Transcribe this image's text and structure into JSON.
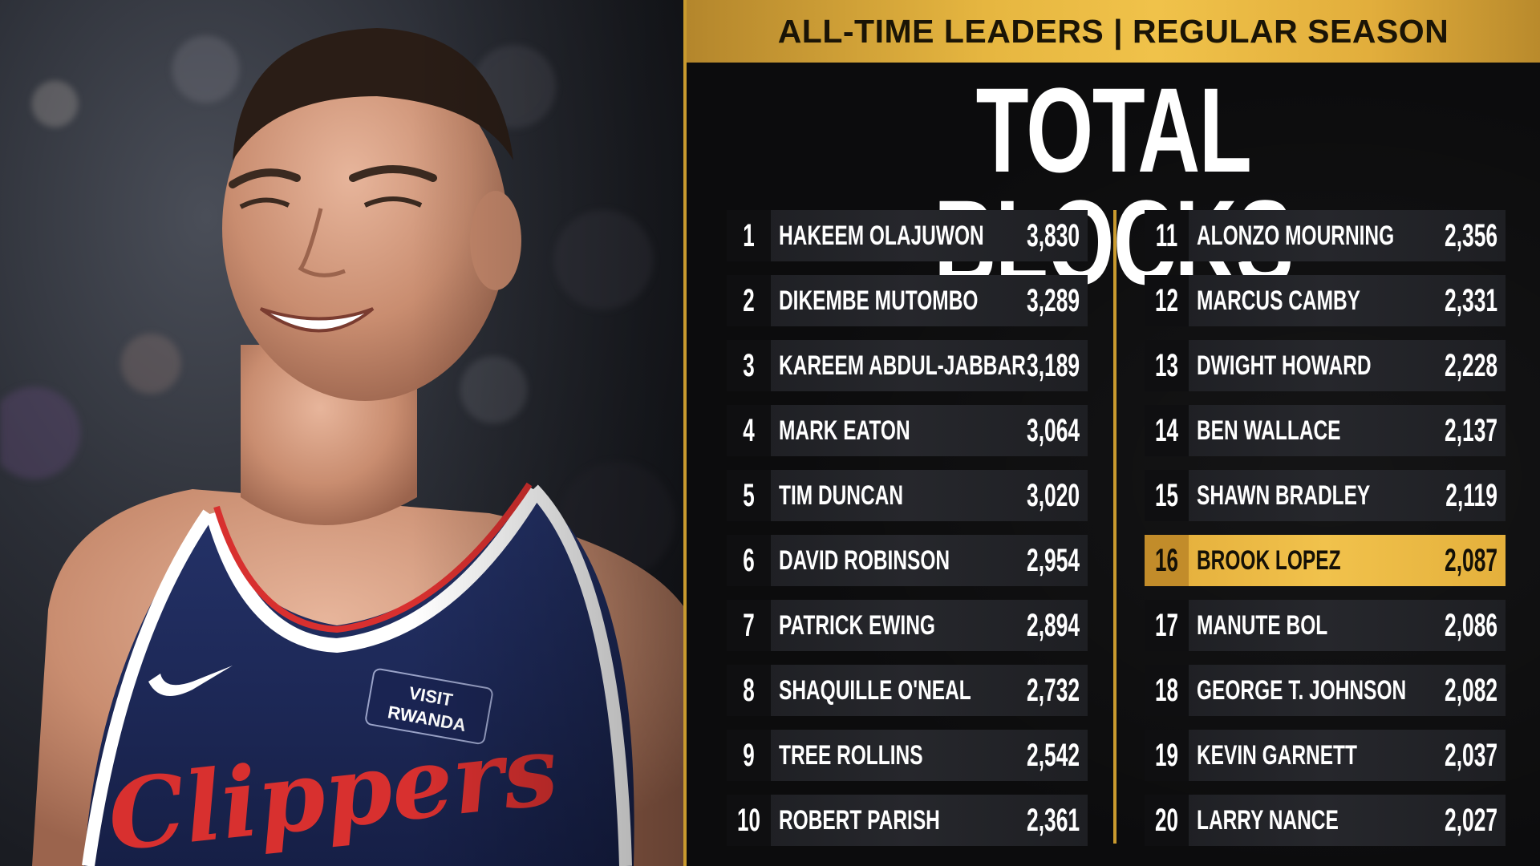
{
  "header": {
    "banner": "ALL-TIME LEADERS | REGULAR SEASON",
    "title": "TOTAL BLOCKS"
  },
  "photo": {
    "jersey_text": "Clippers",
    "patch_text": "VISIT RWANDA"
  },
  "colors": {
    "gold": "#f0c24a",
    "dark": "#0c0c0d",
    "row": "#232428",
    "jersey_navy": "#1d2a5b",
    "jersey_red": "#d8302f"
  },
  "leaders": [
    {
      "rank": "1",
      "name": "HAKEEM OLAJUWON",
      "blocks": "3,830"
    },
    {
      "rank": "2",
      "name": "DIKEMBE MUTOMBO",
      "blocks": "3,289"
    },
    {
      "rank": "3",
      "name": "KAREEM ABDUL-JABBAR",
      "blocks": "3,189"
    },
    {
      "rank": "4",
      "name": "MARK EATON",
      "blocks": "3,064"
    },
    {
      "rank": "5",
      "name": "TIM DUNCAN",
      "blocks": "3,020"
    },
    {
      "rank": "6",
      "name": "DAVID ROBINSON",
      "blocks": "2,954"
    },
    {
      "rank": "7",
      "name": "PATRICK EWING",
      "blocks": "2,894"
    },
    {
      "rank": "8",
      "name": "SHAQUILLE O'NEAL",
      "blocks": "2,732"
    },
    {
      "rank": "9",
      "name": "TREE ROLLINS",
      "blocks": "2,542"
    },
    {
      "rank": "10",
      "name": "ROBERT PARISH",
      "blocks": "2,361"
    },
    {
      "rank": "11",
      "name": "ALONZO MOURNING",
      "blocks": "2,356"
    },
    {
      "rank": "12",
      "name": "MARCUS CAMBY",
      "blocks": "2,331"
    },
    {
      "rank": "13",
      "name": "DWIGHT HOWARD",
      "blocks": "2,228"
    },
    {
      "rank": "14",
      "name": "BEN WALLACE",
      "blocks": "2,137"
    },
    {
      "rank": "15",
      "name": "SHAWN BRADLEY",
      "blocks": "2,119"
    },
    {
      "rank": "16",
      "name": "BROOK LOPEZ",
      "blocks": "2,087",
      "highlight": true
    },
    {
      "rank": "17",
      "name": "MANUTE BOL",
      "blocks": "2,086"
    },
    {
      "rank": "18",
      "name": "GEORGE T. JOHNSON",
      "blocks": "2,082"
    },
    {
      "rank": "19",
      "name": "KEVIN GARNETT",
      "blocks": "2,037"
    },
    {
      "rank": "20",
      "name": "LARRY NANCE",
      "blocks": "2,027"
    }
  ]
}
